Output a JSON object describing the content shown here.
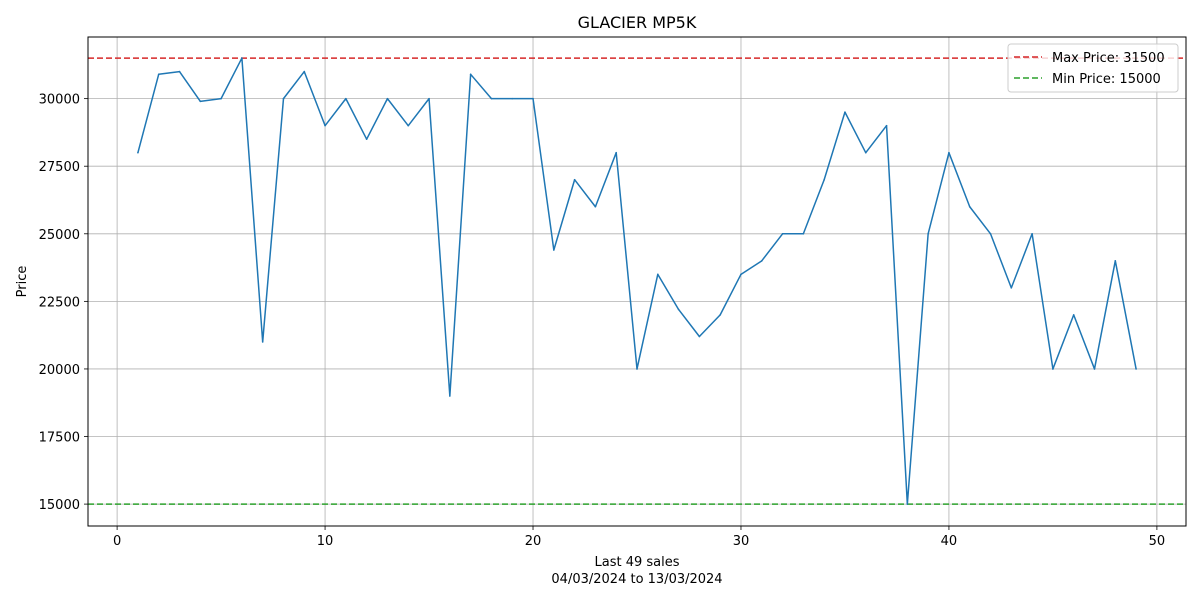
{
  "chart_data": {
    "type": "line",
    "title": "GLACIER MP5K",
    "xlabel": "Last 49 sales",
    "xlabel_sub": "04/03/2024 to 13/03/2024",
    "ylabel": "Price",
    "xlim": [
      -1.4,
      51.4
    ],
    "ylim": [
      14190,
      32280
    ],
    "grid": true,
    "xticks": [
      0,
      10,
      20,
      30,
      40,
      50
    ],
    "yticks": [
      15000,
      17500,
      20000,
      22500,
      25000,
      27500,
      30000
    ],
    "series": [
      {
        "name": "Price",
        "color": "#1f77b4",
        "x": [
          1,
          2,
          3,
          4,
          5,
          6,
          7,
          8,
          9,
          10,
          11,
          12,
          13,
          14,
          15,
          16,
          17,
          18,
          19,
          20,
          21,
          22,
          23,
          24,
          25,
          26,
          27,
          28,
          29,
          30,
          31,
          32,
          33,
          34,
          35,
          36,
          37,
          38,
          39,
          40,
          41,
          42,
          43,
          44,
          45,
          46,
          47,
          48,
          49
        ],
        "values": [
          28000,
          30900,
          31000,
          29900,
          30000,
          31500,
          21000,
          30000,
          31000,
          29000,
          30000,
          28500,
          30000,
          29000,
          30000,
          19000,
          30900,
          30000,
          30000,
          30000,
          24400,
          27000,
          26000,
          28000,
          20000,
          23500,
          22200,
          21200,
          22000,
          23500,
          24000,
          25000,
          25000,
          27000,
          29500,
          28000,
          29000,
          15000,
          25000,
          28000,
          26000,
          25000,
          23000,
          25000,
          20000,
          22000,
          20000,
          24000,
          20000
        ]
      }
    ],
    "reference_lines": [
      {
        "label": "Max Price: 31500",
        "value": 31500,
        "color": "#d62728"
      },
      {
        "label": "Min Price: 15000",
        "value": 15000,
        "color": "#2ca02c"
      }
    ],
    "legend_position": "top-right"
  }
}
